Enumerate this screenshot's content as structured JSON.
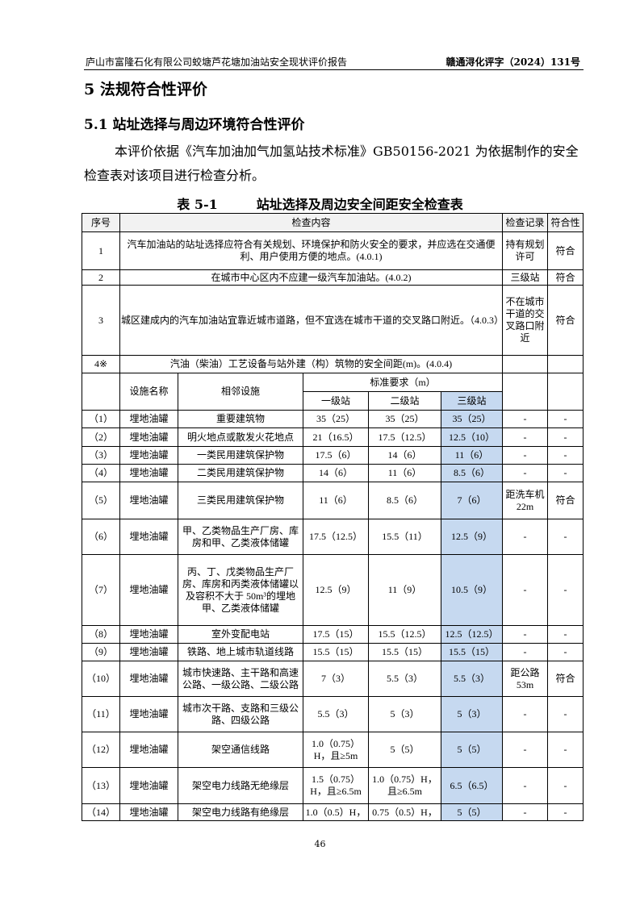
{
  "header": {
    "left": "庐山市富隆石化有限公司蛟塘芦花塘加油站安全现状评价报告",
    "right": "赣通浔化评字（2024）131号"
  },
  "section_title": "5 法规符合性评价",
  "subsection_title": "5.1 站址选择与周边环境符合性评价",
  "paragraph": "本评价依据《汽车加油加气加氢站技术标准》GB50156-2021 为依据制作的安全检查表对该项目进行检查分析。",
  "table_caption": "表 5-1　　　站址选择及周边安全间距安全检查表",
  "table": {
    "headers": [
      "序号",
      "检查内容",
      "检查记录",
      "符合性"
    ],
    "general_rows": [
      {
        "no": "1",
        "content": "汽车加油站的站址选择应符合有关规划、环境保护和防火安全的要求，并应选在交通便利、用户使用方便的地点。(4.0.1)",
        "record": "持有规划许可",
        "result": "符合"
      },
      {
        "no": "2",
        "content": "在城市中心区内不应建一级汽车加油站。(4.0.2)",
        "record": "三级站",
        "result": "符合"
      },
      {
        "no": "3",
        "content": "城区建成内的汽车加油站宜靠近城市道路，但不宜选在城市干道的交叉路口附近。（4.0.3）",
        "record": "不在城市干道的交叉路口附近",
        "result": "符合"
      },
      {
        "no": "4※",
        "content": "汽油（柴油）工艺设备与站外建（构）筑物的安全间距(m)。(4.0.4)",
        "record": "",
        "result": ""
      }
    ],
    "sub_headers": {
      "facility": "设施名称",
      "adjacent": "相邻设施",
      "standard": "标准要求（m）",
      "levels": [
        "一级站",
        "二级站",
        "三级站"
      ]
    },
    "distance_rows": [
      [
        "（1）",
        "埋地油罐",
        "重要建筑物",
        "35（25）",
        "35（25）",
        "35（25）",
        "-",
        "-"
      ],
      [
        "（2）",
        "埋地油罐",
        "明火地点或散发火花地点",
        "21（16.5）",
        "17.5（12.5）",
        "12.5（10）",
        "-",
        "-"
      ],
      [
        "（3）",
        "埋地油罐",
        "一类民用建筑保护物",
        "17.5（6）",
        "14（6）",
        "11（6）",
        "-",
        "-"
      ],
      [
        "（4）",
        "埋地油罐",
        "二类民用建筑保护物",
        "14（6）",
        "11（6）",
        "8.5（6）",
        "-",
        "-"
      ],
      [
        "（5）",
        "埋地油罐",
        "三类民用建筑保护物",
        "11（6）",
        "8.5（6）",
        "7（6）",
        "距洗车机22m",
        "符合"
      ],
      [
        "（6）",
        "埋地油罐",
        "甲、乙类物品生产厂房、库房和甲、乙类液体储罐",
        "17.5（12.5）",
        "15.5（11）",
        "12.5（9）",
        "-",
        "-"
      ],
      [
        "（7）",
        "埋地油罐",
        "丙、丁、戊类物品生产厂房、库房和丙类液体储罐以及容积不大于 50m³的埋地甲、乙类液体储罐",
        "12.5（9）",
        "11（9）",
        "10.5（9）",
        "-",
        "-"
      ],
      [
        "（8）",
        "埋地油罐",
        "室外变配电站",
        "17.5（15）",
        "15.5（12.5）",
        "12.5（12.5）",
        "-",
        "-"
      ],
      [
        "（9）",
        "埋地油罐",
        "铁路、地上城市轨道线路",
        "15.5（15）",
        "15.5（15）",
        "15.5（15）",
        "-",
        "-"
      ],
      [
        "（10）",
        "埋地油罐",
        "城市快速路、主干路和高速公路、一级公路、二级公路",
        "7（3）",
        "5.5（3）",
        "5.5（3）",
        "距公路53m",
        "符合"
      ],
      [
        "（11）",
        "埋地油罐",
        "城市次干路、支路和三级公路、四级公路",
        "5.5（3）",
        "5（3）",
        "5（3）",
        "-",
        "-"
      ],
      [
        "（12）",
        "埋地油罐",
        "架空通信线路",
        "1.0（0.75）H，且≥5m",
        "5（5）",
        "5（5）",
        "-",
        "-"
      ],
      [
        "（13）",
        "埋地油罐",
        "架空电力线路无绝缘层",
        "1.5（0.75）H，且≥6.5m",
        "1.0（0.75）H，且≥6.5m",
        "6.5（6.5）",
        "-",
        "-"
      ],
      [
        "（14）",
        "埋地油罐",
        "架空电力线路有绝缘层",
        "1.0（0.5）H，",
        "0.75（0.5）H，",
        "5（5）",
        "-",
        "-"
      ]
    ]
  },
  "page_number": "46",
  "colors": {
    "highlight": "#c6d9f0"
  }
}
